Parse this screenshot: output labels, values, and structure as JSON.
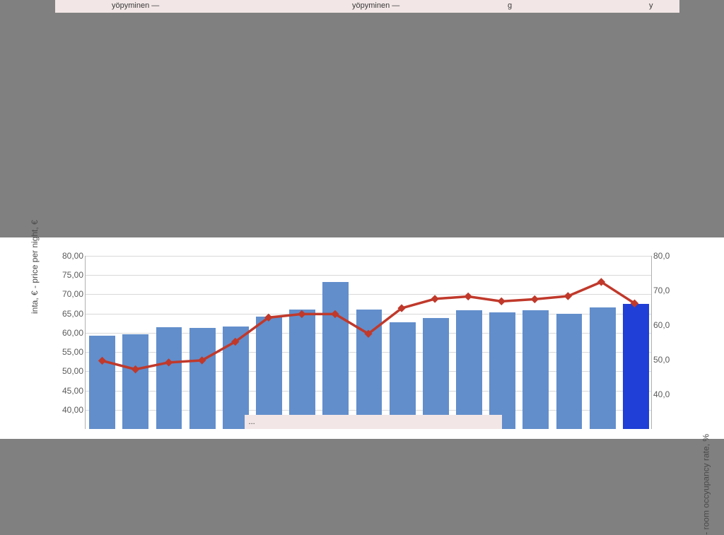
{
  "top_bar": {
    "frag1": "yöpyminen —",
    "frag2": "yöpyminen —",
    "frag3": "g",
    "frag4": "y"
  },
  "left_axis_label": "inta, € - price per night, €",
  "right_axis_label": "- room occyupancy rate, %",
  "left_axis": {
    "min": 35,
    "max": 80,
    "ticks": [
      40,
      45,
      50,
      55,
      60,
      65,
      70,
      75,
      80
    ],
    "tick_labels": [
      "40,00",
      "45,00",
      "50,00",
      "55,00",
      "60,00",
      "65,00",
      "70,00",
      "75,00",
      "80,00"
    ]
  },
  "right_axis": {
    "min": 30,
    "max": 80,
    "ticks": [
      40,
      50,
      60,
      70,
      80
    ],
    "tick_labels": [
      "40,0",
      "50,0",
      "60,0",
      "70,0",
      "80,0"
    ]
  },
  "bars": {
    "count": 17,
    "values": [
      59.2,
      59.7,
      61.4,
      61.3,
      61.7,
      64.2,
      66.0,
      73.2,
      66.1,
      62.7,
      63.9,
      65.9,
      65.3,
      65.9,
      64.9,
      66.6,
      67.6
    ],
    "fill_colors": [
      "#628ecb",
      "#628ecb",
      "#628ecb",
      "#628ecb",
      "#628ecb",
      "#628ecb",
      "#628ecb",
      "#628ecb",
      "#628ecb",
      "#628ecb",
      "#628ecb",
      "#628ecb",
      "#628ecb",
      "#628ecb",
      "#628ecb",
      "#628ecb",
      "#1f3fd6"
    ],
    "bar_width_ratio": 0.78
  },
  "line": {
    "values": [
      49.7,
      47.2,
      49.2,
      49.8,
      55.2,
      62.2,
      63.2,
      63.2,
      57.5,
      64.9,
      67.6,
      68.3,
      66.9,
      67.5,
      68.4,
      72.5,
      66.3
    ],
    "color": "#c0392b",
    "stroke_width": 3.5,
    "marker": "diamond",
    "marker_size": 10,
    "marker_fill": "#c0392b",
    "marker_stroke": "#c0392b"
  },
  "legend_stub": "...",
  "colors": {
    "background": "#808080",
    "panel": "#ffffff",
    "grid": "#d8d8d8",
    "axis": "#b0b0b0",
    "top_bar_bg": "#f2e6e6"
  },
  "fonts": {
    "tick_size_pt": 12,
    "axis_label_size_pt": 12
  }
}
